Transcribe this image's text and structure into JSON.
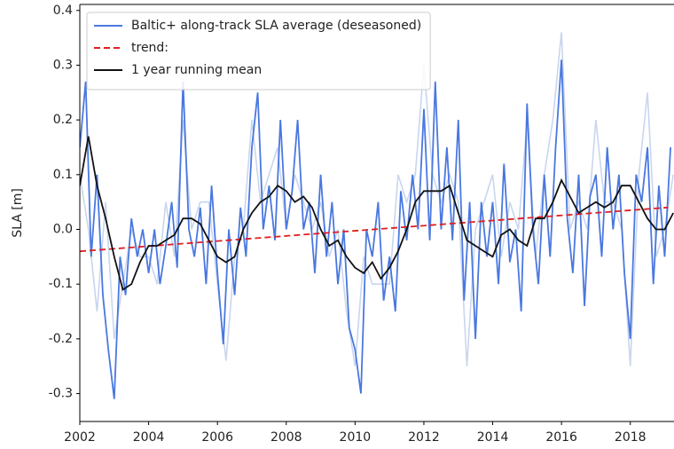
{
  "chart_data": {
    "type": "line",
    "y_label": "SLA [m]",
    "xlim": [
      2002,
      2019.27
    ],
    "ylim": [
      -0.351,
      0.411
    ],
    "xticks": [
      2002,
      2004,
      2006,
      2008,
      2010,
      2012,
      2014,
      2016,
      2018
    ],
    "yticks": [
      -0.3,
      -0.2,
      -0.1,
      {
        "value": 0,
        "label": "0.0"
      },
      0.1,
      0.2,
      0.3,
      0.4
    ],
    "legend": "upper left",
    "series": [
      {
        "color": "#c9d6ee",
        "linestyle": "solid",
        "x": [
          2002,
          2002.25,
          2002.5,
          2002.75,
          2003,
          2003.25,
          2003.5,
          2003.75,
          2004,
          2004.25,
          2004.5,
          2004.75,
          2005,
          2005.25,
          2005.5,
          2005.75,
          2006,
          2006.25,
          2006.5,
          2006.75,
          2007,
          2007.25,
          2007.5,
          2007.75,
          2008,
          2008.25,
          2008.5,
          2008.75,
          2009,
          2009.25,
          2009.5,
          2009.75,
          2010,
          2010.25,
          2010.5,
          2010.75,
          2011,
          2011.25,
          2011.5,
          2011.75,
          2012,
          2012.25,
          2012.5,
          2012.75,
          2013,
          2013.25,
          2013.5,
          2013.75,
          2014,
          2014.25,
          2014.5,
          2014.75,
          2015,
          2015.25,
          2015.5,
          2015.75,
          2016,
          2016.25,
          2016.5,
          2016.75,
          2017,
          2017.25,
          2017.5,
          2017.75,
          2018,
          2018.25,
          2018.5,
          2018.75,
          2019,
          2019.25
        ],
        "values": [
          0.1,
          0.0,
          -0.15,
          0.05,
          -0.2,
          -0.1,
          0.0,
          -0.05,
          -0.05,
          -0.1,
          0.05,
          -0.05,
          0.2,
          0.0,
          0.05,
          0.05,
          -0.1,
          -0.24,
          -0.05,
          0.0,
          0.2,
          0.05,
          0.1,
          0.15,
          0.0,
          0.1,
          0.05,
          0.0,
          0.05,
          -0.05,
          0.0,
          -0.15,
          -0.25,
          -0.05,
          -0.1,
          -0.1,
          -0.1,
          0.1,
          0.05,
          0.1,
          0.3,
          0.1,
          0.05,
          0.1,
          0.05,
          -0.25,
          0.0,
          0.05,
          0.1,
          -0.05,
          0.05,
          0.0,
          0.2,
          -0.05,
          0.1,
          0.2,
          0.36,
          0.0,
          0.05,
          0.0,
          0.2,
          0.05,
          0.05,
          0.0,
          -0.25,
          0.1,
          0.25,
          -0.05,
          0.0,
          0.1
        ]
      },
      {
        "name": "Baltic+ along-track SLA average (deseasoned)",
        "color": "#4a78e0",
        "linestyle": "solid",
        "x": [
          2002,
          2002.17,
          2002.33,
          2002.5,
          2002.67,
          2002.83,
          2003,
          2003.17,
          2003.33,
          2003.5,
          2003.67,
          2003.83,
          2004,
          2004.17,
          2004.33,
          2004.5,
          2004.67,
          2004.83,
          2005,
          2005.17,
          2005.33,
          2005.5,
          2005.67,
          2005.83,
          2006,
          2006.17,
          2006.33,
          2006.5,
          2006.67,
          2006.83,
          2007,
          2007.17,
          2007.33,
          2007.5,
          2007.67,
          2007.83,
          2008,
          2008.17,
          2008.33,
          2008.5,
          2008.67,
          2008.83,
          2009,
          2009.17,
          2009.33,
          2009.5,
          2009.67,
          2009.83,
          2010,
          2010.17,
          2010.33,
          2010.5,
          2010.67,
          2010.83,
          2011,
          2011.17,
          2011.33,
          2011.5,
          2011.67,
          2011.83,
          2012,
          2012.17,
          2012.33,
          2012.5,
          2012.67,
          2012.83,
          2013,
          2013.17,
          2013.33,
          2013.5,
          2013.67,
          2013.83,
          2014,
          2014.17,
          2014.33,
          2014.5,
          2014.67,
          2014.83,
          2015,
          2015.17,
          2015.33,
          2015.5,
          2015.67,
          2015.83,
          2016,
          2016.17,
          2016.33,
          2016.5,
          2016.67,
          2016.83,
          2017,
          2017.17,
          2017.33,
          2017.5,
          2017.67,
          2017.83,
          2018,
          2018.17,
          2018.33,
          2018.5,
          2018.67,
          2018.83,
          2019,
          2019.17
        ],
        "values": [
          0.15,
          0.27,
          -0.05,
          0.1,
          -0.12,
          -0.22,
          -0.31,
          -0.05,
          -0.12,
          0.02,
          -0.05,
          0.0,
          -0.08,
          0.0,
          -0.1,
          -0.03,
          0.05,
          -0.07,
          0.27,
          0.0,
          -0.05,
          0.04,
          -0.1,
          0.08,
          -0.08,
          -0.21,
          0.0,
          -0.12,
          0.04,
          -0.05,
          0.15,
          0.25,
          0.0,
          0.08,
          -0.02,
          0.2,
          0.0,
          0.07,
          0.2,
          0.0,
          0.05,
          -0.08,
          0.1,
          -0.05,
          0.05,
          -0.1,
          0.0,
          -0.18,
          -0.22,
          -0.3,
          0.0,
          -0.05,
          0.05,
          -0.13,
          -0.05,
          -0.15,
          0.07,
          -0.02,
          0.1,
          0.0,
          0.22,
          -0.02,
          0.27,
          0.0,
          0.15,
          -0.02,
          0.2,
          -0.13,
          0.05,
          -0.2,
          0.05,
          -0.05,
          0.05,
          -0.1,
          0.12,
          -0.06,
          0.0,
          -0.15,
          0.23,
          0.0,
          -0.1,
          0.1,
          -0.05,
          0.15,
          0.31,
          0.02,
          -0.08,
          0.1,
          -0.14,
          0.06,
          0.1,
          -0.05,
          0.15,
          0.0,
          0.1,
          -0.08,
          -0.2,
          0.1,
          0.05,
          0.15,
          -0.1,
          0.08,
          -0.05,
          0.15
        ]
      },
      {
        "name": "trend:",
        "color": "#e02020",
        "linestyle": "dashed",
        "x": [
          2002,
          2019.1
        ],
        "values": [
          -0.04,
          0.04
        ]
      },
      {
        "name": "1 year running mean",
        "color": "#111111",
        "linestyle": "solid",
        "x": [
          2002,
          2002.25,
          2002.5,
          2002.75,
          2003,
          2003.25,
          2003.5,
          2003.75,
          2004,
          2004.25,
          2004.5,
          2004.75,
          2005,
          2005.25,
          2005.5,
          2005.75,
          2006,
          2006.25,
          2006.5,
          2006.75,
          2007,
          2007.25,
          2007.5,
          2007.75,
          2008,
          2008.25,
          2008.5,
          2008.75,
          2009,
          2009.25,
          2009.5,
          2009.75,
          2010,
          2010.25,
          2010.5,
          2010.75,
          2011,
          2011.25,
          2011.5,
          2011.75,
          2012,
          2012.25,
          2012.5,
          2012.75,
          2013,
          2013.25,
          2013.5,
          2013.75,
          2014,
          2014.25,
          2014.5,
          2014.75,
          2015,
          2015.25,
          2015.5,
          2015.75,
          2016,
          2016.25,
          2016.5,
          2016.75,
          2017,
          2017.25,
          2017.5,
          2017.75,
          2018,
          2018.25,
          2018.5,
          2018.75,
          2019,
          2019.25
        ],
        "values": [
          0.08,
          0.17,
          0.08,
          0.02,
          -0.05,
          -0.11,
          -0.1,
          -0.06,
          -0.03,
          -0.03,
          -0.02,
          -0.01,
          0.02,
          0.02,
          0.01,
          -0.02,
          -0.05,
          -0.06,
          -0.05,
          0.0,
          0.03,
          0.05,
          0.06,
          0.08,
          0.07,
          0.05,
          0.06,
          0.04,
          0.0,
          -0.03,
          -0.02,
          -0.05,
          -0.07,
          -0.08,
          -0.06,
          -0.09,
          -0.07,
          -0.04,
          0.0,
          0.05,
          0.07,
          0.07,
          0.07,
          0.08,
          0.03,
          -0.02,
          -0.03,
          -0.04,
          -0.05,
          -0.01,
          0.0,
          -0.02,
          -0.03,
          0.02,
          0.02,
          0.05,
          0.09,
          0.06,
          0.03,
          0.04,
          0.05,
          0.04,
          0.05,
          0.08,
          0.08,
          0.05,
          0.02,
          0.0,
          0.0,
          0.03
        ]
      }
    ]
  }
}
